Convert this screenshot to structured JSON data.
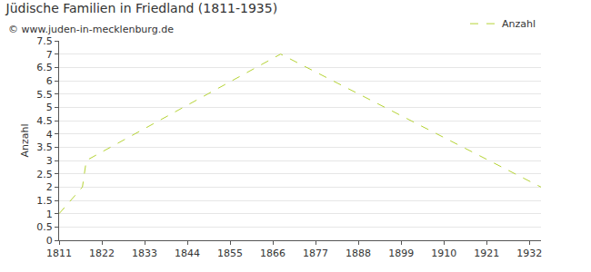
{
  "chart_data": {
    "type": "line",
    "title": "Jüdische Familien in Friedland (1811-1935)",
    "subtitle": "© www.juden-in-mecklenburg.de",
    "y_label": "Anzahl",
    "x": [
      1811,
      1817,
      1818,
      1868,
      1935
    ],
    "series": [
      {
        "name": "Anzahl",
        "color": "#b5d334",
        "values": [
          1,
          2,
          3,
          7,
          2
        ],
        "line_style": "dash"
      }
    ],
    "xlim": [
      1811,
      1935
    ],
    "xticks": [
      1811,
      1822,
      1833,
      1844,
      1855,
      1866,
      1877,
      1888,
      1899,
      1910,
      1921,
      1932
    ],
    "ylim": [
      0,
      7.5
    ],
    "yticks": [
      0,
      0.5,
      1,
      1.5,
      2,
      2.5,
      3,
      3.5,
      4,
      4.5,
      5,
      5.5,
      6,
      6.5,
      7,
      7.5
    ],
    "grid": true,
    "legend": "top right"
  }
}
